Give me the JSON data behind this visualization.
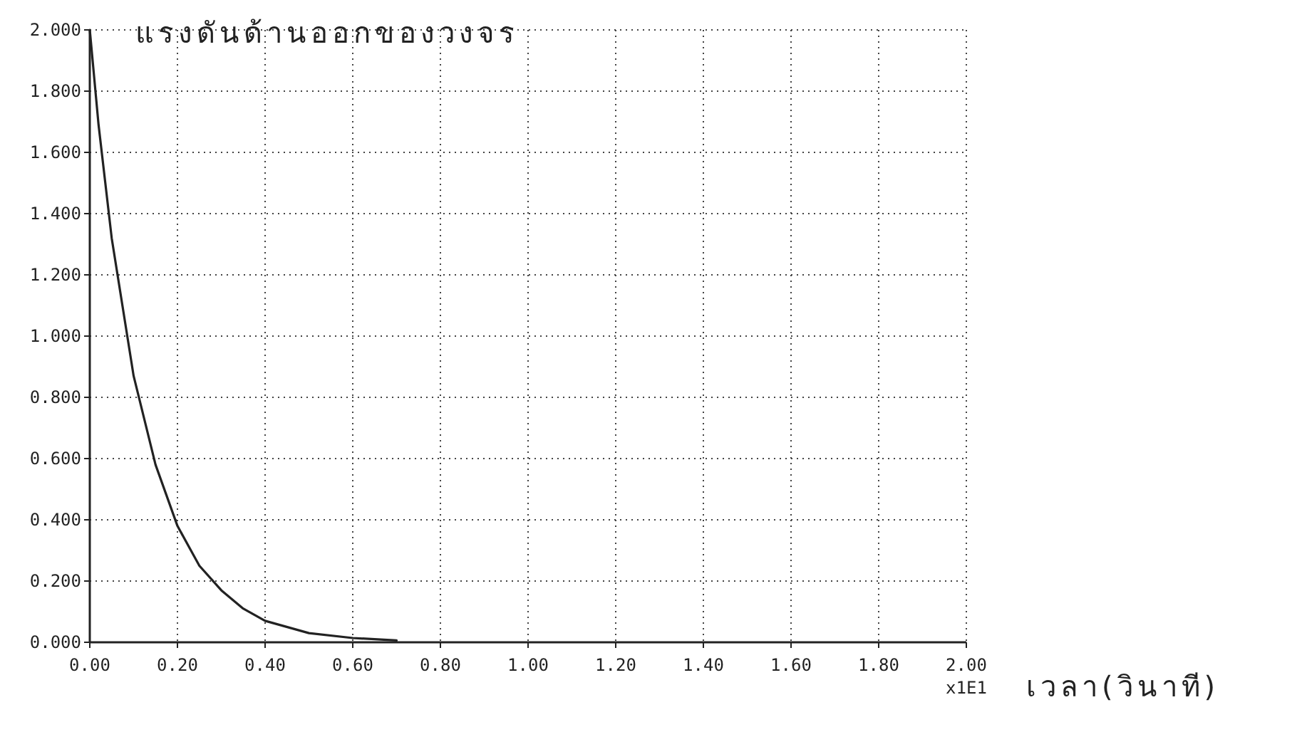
{
  "chart_data": {
    "type": "line",
    "title": "แรงดันด้านออกของวงจร",
    "xlabel": "เวลา(วินาที)",
    "annotations": [
      "x1E1"
    ],
    "x": [
      0,
      0.02,
      0.05,
      0.1,
      0.15,
      0.2,
      0.25,
      0.3,
      0.35,
      0.4,
      0.5,
      0.6,
      0.7
    ],
    "series": [
      {
        "color": "#222222",
        "values": [
          2.0,
          1.69,
          1.32,
          0.87,
          0.58,
          0.38,
          0.25,
          0.17,
          0.11,
          0.07,
          0.03,
          0.014,
          0.006
        ]
      }
    ],
    "xlim": [
      0,
      2
    ],
    "ylim": [
      0,
      2
    ],
    "xticks": [
      {
        "value": 0,
        "label": "0.00"
      },
      {
        "value": 0.2,
        "label": "0.20"
      },
      {
        "value": 0.4,
        "label": "0.40"
      },
      {
        "value": 0.6,
        "label": "0.60"
      },
      {
        "value": 0.8,
        "label": "0.80"
      },
      {
        "value": 1,
        "label": "1.00"
      },
      {
        "value": 1.2,
        "label": "1.20"
      },
      {
        "value": 1.4,
        "label": "1.40"
      },
      {
        "value": 1.6,
        "label": "1.60"
      },
      {
        "value": 1.8,
        "label": "1.80"
      },
      {
        "value": 2,
        "label": "2.00"
      }
    ],
    "yticks": [
      {
        "value": 0,
        "label": "0.000"
      },
      {
        "value": 0.2,
        "label": "0.200"
      },
      {
        "value": 0.4,
        "label": "0.400"
      },
      {
        "value": 0.6,
        "label": "0.600"
      },
      {
        "value": 0.8,
        "label": "0.800"
      },
      {
        "value": 1,
        "label": "1.000"
      },
      {
        "value": 1.2,
        "label": "1.200"
      },
      {
        "value": 1.4,
        "label": "1.400"
      },
      {
        "value": 1.6,
        "label": "1.600"
      },
      {
        "value": 1.8,
        "label": "1.800"
      },
      {
        "value": 2,
        "label": "2.000"
      }
    ],
    "grid": true,
    "line_style": "solid",
    "marker": "none"
  }
}
